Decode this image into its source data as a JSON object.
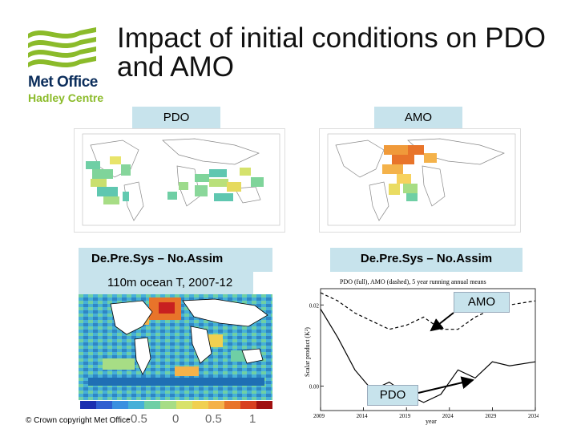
{
  "logo": {
    "line1": "Met Office",
    "line2": "Hadley Centre",
    "green": "#8bbb2a",
    "navy": "#0b2d5b"
  },
  "title": "Impact of initial conditions on PDO and AMO",
  "labels": {
    "pdo": "PDO",
    "amo": "AMO",
    "dep_left": "De.Pre.Sys – No.Assim",
    "dep_right": "De.Pre.Sys – No.Assim",
    "ocean": "110m ocean T, 2007-12"
  },
  "colorbar": {
    "ticks": [
      "-0.5",
      "0",
      "0.5",
      "1"
    ]
  },
  "chart_data": {
    "type": "line",
    "title": "PDO (full), AMO (dashed), 5 year running annual means",
    "ylabel": "Scalar product (K²)",
    "xlabel": "year",
    "x": [
      2009,
      2011,
      2013,
      2015,
      2017,
      2019,
      2021,
      2023,
      2025,
      2027,
      2029,
      2031,
      2034
    ],
    "xticks": [
      "2009",
      "2014",
      "2019",
      "2024",
      "2029",
      "2034"
    ],
    "yticks": [
      "0.02",
      "0.00"
    ],
    "ylim": [
      -0.006,
      0.024
    ],
    "xlim": [
      2009,
      2034
    ],
    "series": [
      {
        "name": "PDO",
        "style": "solid",
        "values": [
          0.019,
          0.012,
          0.004,
          -0.001,
          0.001,
          -0.002,
          -0.004,
          -0.002,
          0.004,
          0.002,
          0.006,
          0.005,
          0.006
        ]
      },
      {
        "name": "AMO",
        "style": "dashed",
        "values": [
          0.023,
          0.021,
          0.018,
          0.016,
          0.014,
          0.015,
          0.017,
          0.014,
          0.014,
          0.017,
          0.019,
          0.02,
          0.021
        ]
      }
    ],
    "callouts": {
      "amo": "AMO",
      "pdo": "PDO"
    }
  },
  "copyright": "© Crown copyright   Met Office"
}
